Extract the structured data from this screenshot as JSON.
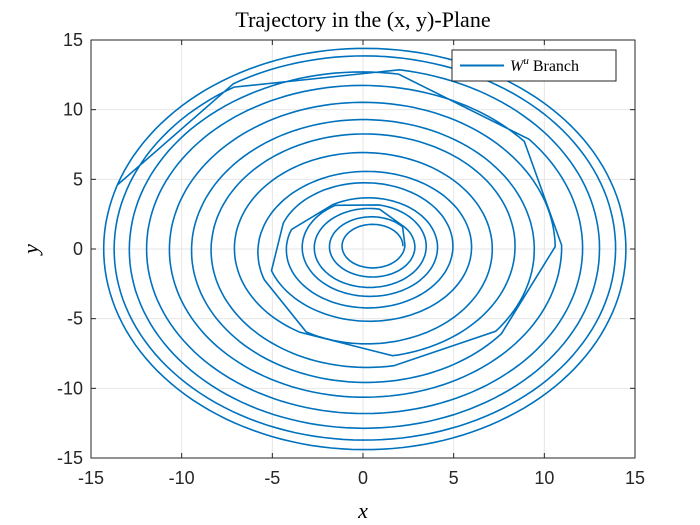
{
  "chart_data": {
    "type": "line",
    "title": "Trajectory in the (x, y)-Plane",
    "xlabel": "x",
    "ylabel": "y",
    "xlim": [
      -15,
      15
    ],
    "ylim": [
      -15,
      15
    ],
    "xticks": [
      -15,
      -10,
      -5,
      0,
      5,
      10,
      15
    ],
    "yticks": [
      -15,
      -10,
      -5,
      0,
      5,
      10,
      15
    ],
    "grid": true,
    "legend_position": "top-right",
    "series": [
      {
        "name": "W^u Branch",
        "color": "#0072BD",
        "description_rings": [
          {
            "center": [
              0.6,
              0.2
            ],
            "radius_x": 1.6,
            "radius_y": 1.5
          },
          {
            "center": [
              0.5,
              0.3
            ],
            "radius_x": 2.2,
            "radius_y": 2.0
          },
          {
            "center": [
              0.4,
              0.1
            ],
            "radius_x": 3.0,
            "radius_y": 2.8
          },
          {
            "center": [
              0.3,
              0.2
            ],
            "radius_x": 3.6,
            "radius_y": 3.4
          },
          {
            "center": [
              0.3,
              0.0
            ],
            "radius_x": 4.5,
            "radius_y": 4.2
          },
          {
            "center": [
              0.2,
              0.3
            ],
            "radius_x": 5.6,
            "radius_y": 5.3
          },
          {
            "center": [
              0.2,
              -0.2
            ],
            "radius_x": 6.8,
            "radius_y": 6.6
          },
          {
            "center": [
              0.1,
              0.2
            ],
            "radius_x": 8.2,
            "radius_y": 8.0
          },
          {
            "center": [
              0.1,
              -0.1
            ],
            "radius_x": 9.3,
            "radius_y": 9.2
          },
          {
            "center": [
              0.1,
              0.0
            ],
            "radius_x": 10.5,
            "radius_y": 10.4
          },
          {
            "center": [
              0.0,
              0.1
            ],
            "radius_x": 11.8,
            "radius_y": 11.6
          },
          {
            "center": [
              0.0,
              0.0
            ],
            "radius_x": 12.8,
            "radius_y": 12.7
          },
          {
            "center": [
              0.0,
              0.0
            ],
            "radius_x": 13.7,
            "radius_y": 13.6
          },
          {
            "center": [
              0.1,
              0.0
            ],
            "radius_x": 14.4,
            "radius_y": 14.4
          }
        ]
      }
    ]
  }
}
